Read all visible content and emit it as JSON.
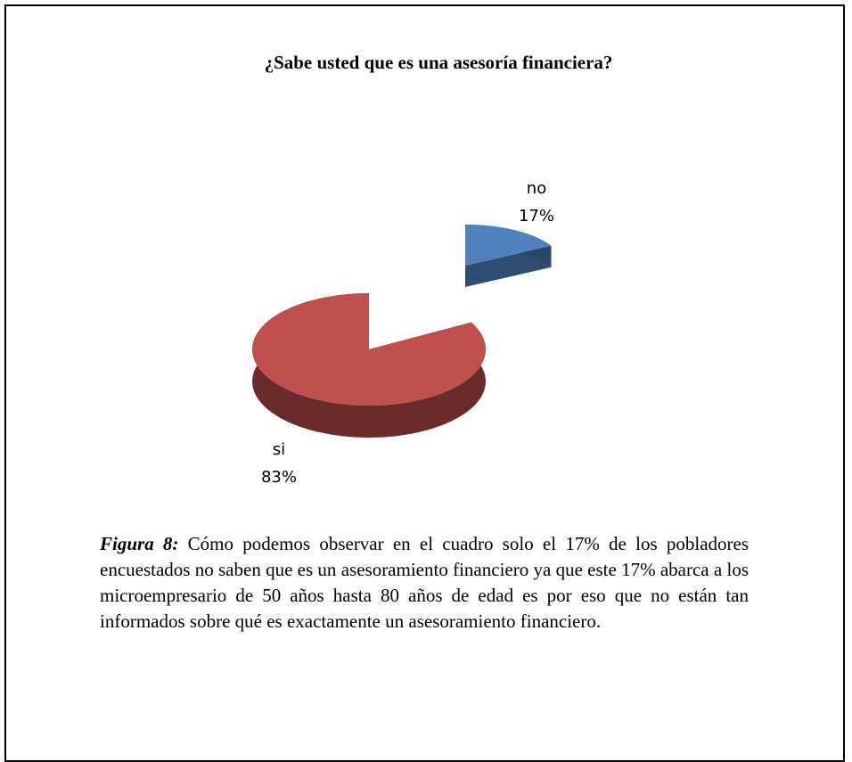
{
  "chart_data": {
    "type": "pie",
    "title": "¿Sabe usted que es una asesoría financiera?",
    "categories": [
      "no",
      "si"
    ],
    "values": [
      17,
      83
    ],
    "value_labels": [
      "17%",
      "83%"
    ],
    "colors": [
      "#4f81bd",
      "#c0504d"
    ]
  },
  "caption": {
    "label": "Figura 8:",
    "text": " Cómo podemos observar en el cuadro solo el 17% de los pobladores encuestados no saben que es un asesoramiento financiero ya que este 17% abarca a los microempresario de 50 años hasta 80 años de edad es por eso que no están tan informados sobre qué es exactamente un asesoramiento financiero."
  }
}
